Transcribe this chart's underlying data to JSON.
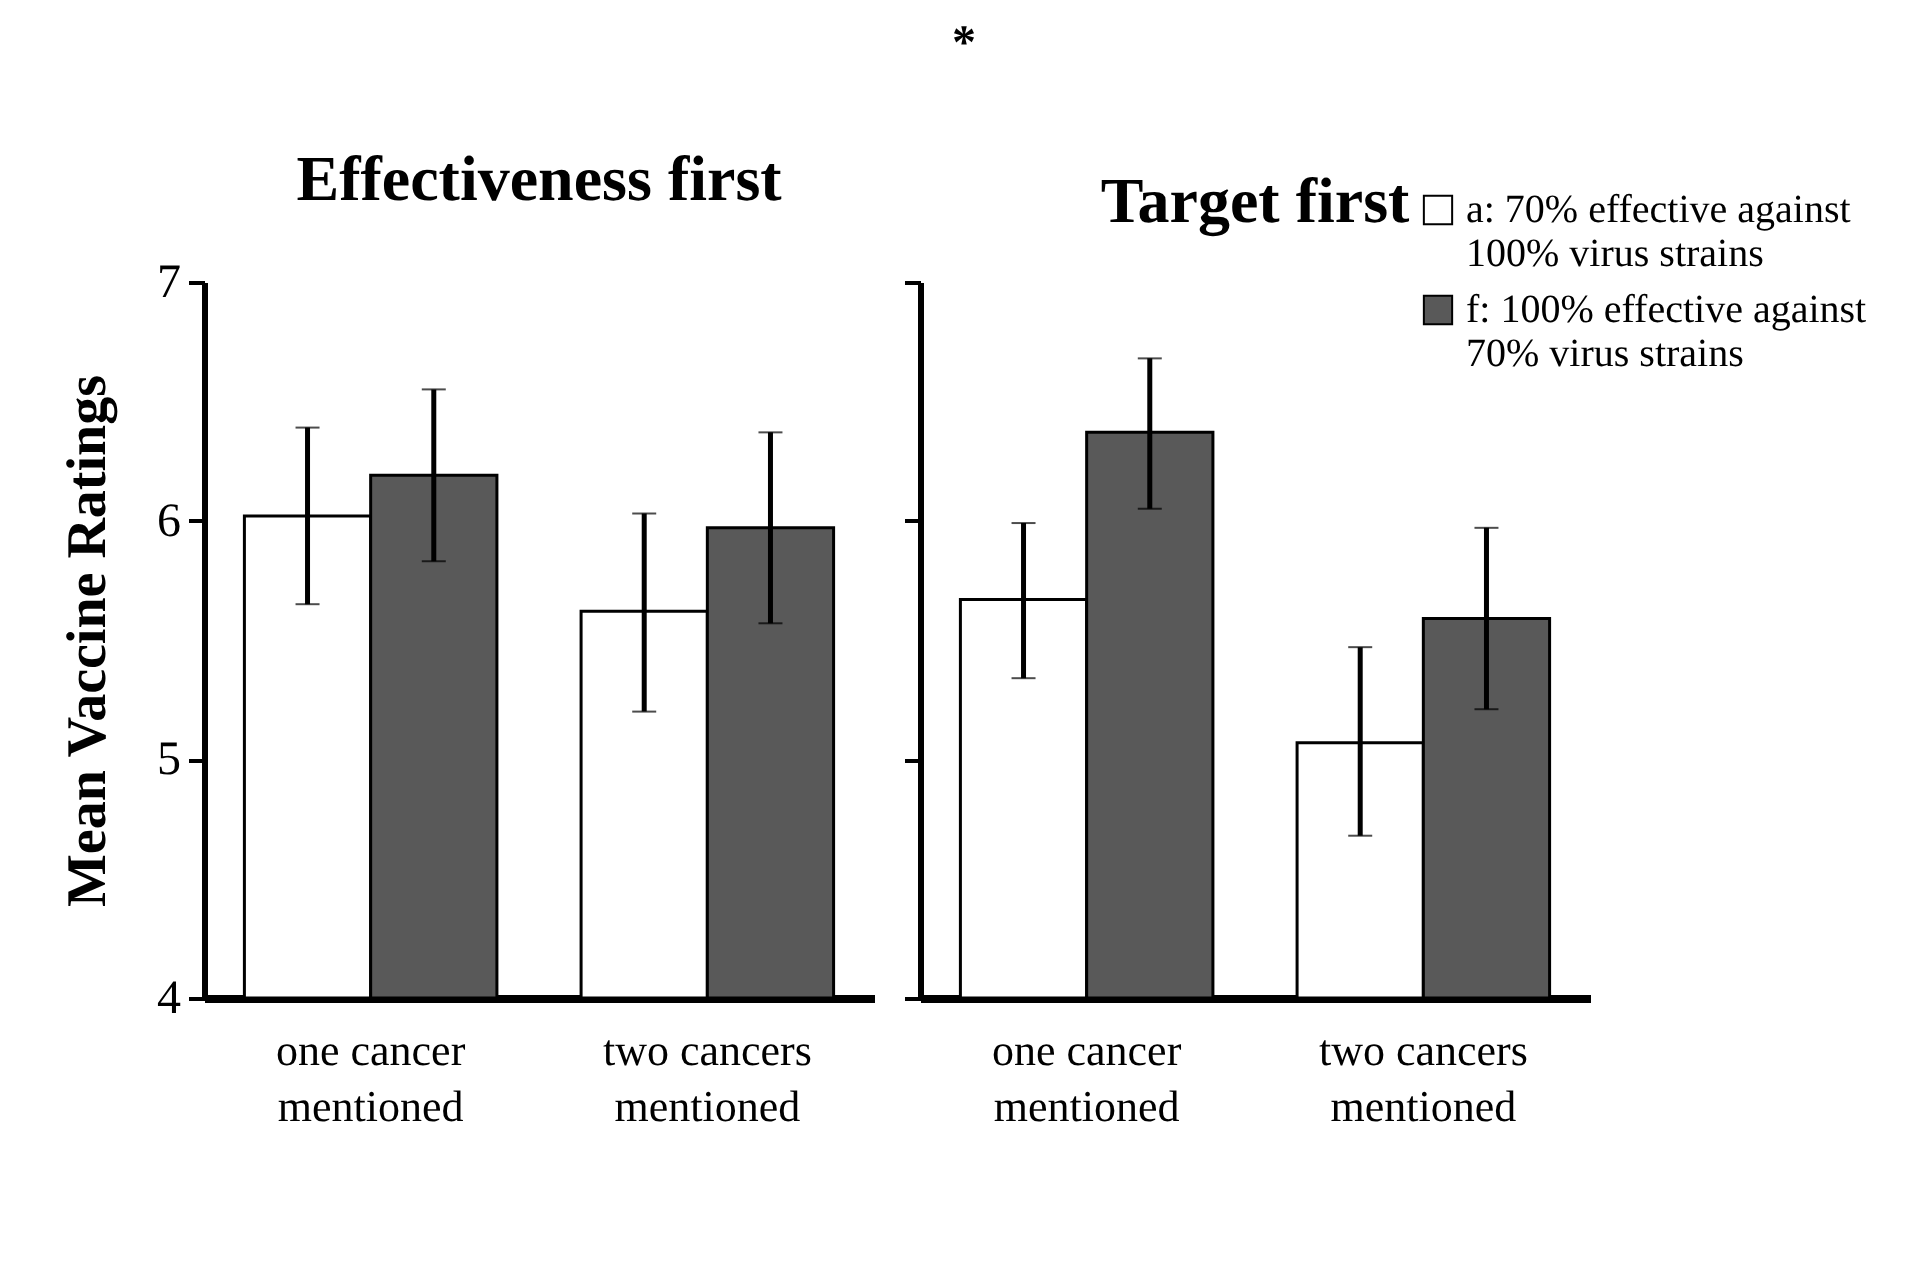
{
  "chart_data": [
    {
      "type": "bar",
      "title": "Effectiveness first",
      "ylabel": "Mean Vaccine Ratings",
      "annotations": [
        "*"
      ],
      "categories": [
        "one cancer\nmentioned",
        "two cancers\nmentioned"
      ],
      "series": [
        {
          "name": "a: 70% effective against\n100% virus strains",
          "color": "#ffffff",
          "values": [
            6.02,
            5.62
          ],
          "errors": [
            [
              5.65,
              6.39
            ],
            [
              5.2,
              6.03
            ]
          ]
        },
        {
          "name": "f: 100% effective against\n70% virus strains",
          "color": "#595959",
          "values": [
            6.19,
            5.97
          ],
          "errors": [
            [
              5.83,
              6.55
            ],
            [
              5.57,
              6.37
            ]
          ]
        }
      ],
      "ylim": [
        4,
        7
      ],
      "yticks": [
        4,
        5,
        6,
        7
      ],
      "grid": false,
      "legend": "top right"
    },
    {
      "type": "bar",
      "title": "Target first",
      "categories": [
        "one cancer\nmentioned",
        "two cancers\nmentioned"
      ],
      "series": [
        {
          "name": "a: 70% effective against\n100% virus strains",
          "color": "#ffffff",
          "values": [
            5.67,
            5.07
          ],
          "errors": [
            [
              5.34,
              5.99
            ],
            [
              4.68,
              5.47
            ]
          ]
        },
        {
          "name": "f: 100% effective against\n70% virus strains",
          "color": "#595959",
          "values": [
            6.37,
            5.59
          ],
          "errors": [
            [
              6.05,
              6.68
            ],
            [
              5.21,
              5.97
            ]
          ]
        }
      ],
      "ylim": [
        4,
        7
      ],
      "yticks": [
        4,
        5,
        6,
        7
      ],
      "grid": false,
      "legend": "top right",
      "tick_labels": "x"
    }
  ]
}
